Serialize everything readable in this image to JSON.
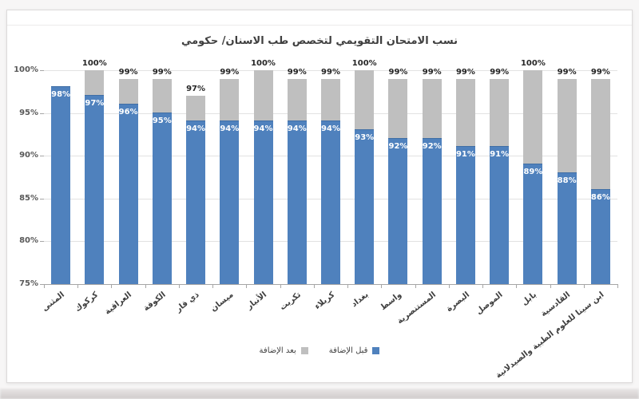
{
  "chart_data": {
    "type": "bar",
    "stacked": true,
    "title": "نسب الامتحان التقويمي لتخصص طب الاسنان/ حكومي",
    "categories": [
      "المثنى",
      "كركوك",
      "العراقية",
      "الكوفة",
      "ذي قار",
      "ميسان",
      "الأنبار",
      "تكريت",
      "كربلاء",
      "بغداد",
      "واسط",
      "المستنصرية",
      "البصرة",
      "الموصل",
      "بابل",
      "القادسية",
      "ابن سينا للعلوم الطبية والصيدلانية"
    ],
    "series": [
      {
        "name": "قبل الإضافة",
        "color": "#4f81bd",
        "values": [
          98,
          97,
          96,
          95,
          94,
          94,
          94,
          94,
          94,
          93,
          92,
          92,
          91,
          91,
          89,
          88,
          86
        ]
      },
      {
        "name": "بعد الإضافة",
        "color": "#bfbfbf",
        "totals": [
          null,
          100,
          99,
          99,
          97,
          99,
          100,
          99,
          99,
          100,
          99,
          99,
          99,
          99,
          100,
          99,
          99
        ]
      }
    ],
    "value_suffix": "%",
    "ylim": [
      75,
      100
    ],
    "ytick_step": 5,
    "yticks": [
      "100%",
      "95%",
      "90%",
      "85%",
      "80%",
      "75%"
    ],
    "grid": true,
    "legend_position": "bottom"
  },
  "legend": {
    "items": [
      {
        "label": "بعد الإضافة",
        "color": "#bfbfbf"
      },
      {
        "label": "قبل الإضافة",
        "color": "#4f81bd"
      }
    ]
  },
  "colors": {
    "before_bar": "#4f81bd",
    "after_bar": "#bfbfbf",
    "gridline": "#e2e2e2",
    "axis": "#a6a6a6",
    "title_text": "#3f3f3f",
    "axis_text": "#595959",
    "total_label_text": "#262626",
    "before_label_text": "#ffffff"
  }
}
